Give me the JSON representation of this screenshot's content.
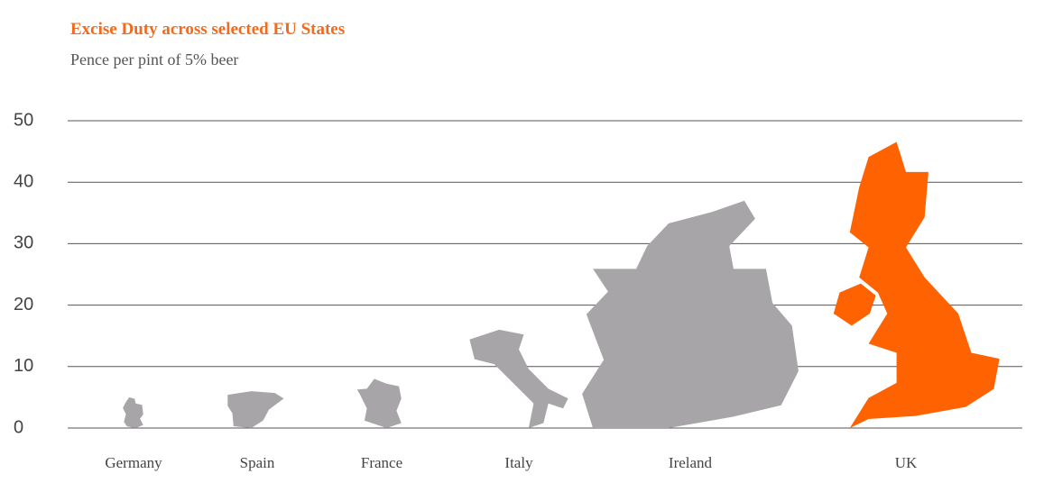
{
  "chart_data": {
    "type": "pictogram",
    "title": "Excise Duty across selected EU States",
    "subtitle": "Pence per pint of 5% beer",
    "categories": [
      "Germany",
      "Spain",
      "France",
      "Italy",
      "Ireland",
      "UK"
    ],
    "values": [
      5,
      6,
      8,
      16,
      37,
      49
    ],
    "colors": [
      "#a7a5a8",
      "#a7a5a8",
      "#a7a5a8",
      "#a7a5a8",
      "#a7a5a8",
      "#ff6200"
    ],
    "ylim": [
      0,
      50
    ],
    "yticks": [
      0,
      10,
      20,
      30,
      40,
      50
    ],
    "grid": true
  }
}
